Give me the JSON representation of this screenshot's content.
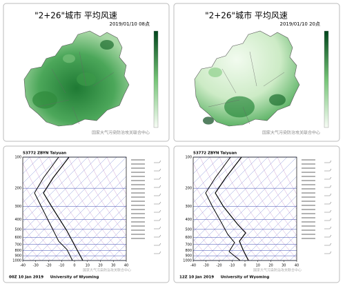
{
  "panels": [
    {
      "title": "\"2+26\"城市 平均风速",
      "time": "2019/01/10 08点",
      "credit": "国家大气污染防治攻关联合中心"
    },
    {
      "title": "\"2+26\"城市 平均风速",
      "time": "2019/01/10 20点",
      "credit": "国家大气污染防治攻关联合中心"
    }
  ],
  "soundings": [
    {
      "station": "53772 ZBYN Taiyuan",
      "time": "00Z 10 Jan 2019",
      "source": "University of Wyoming"
    },
    {
      "station": "53772 ZBYN Taiyuan",
      "time": "12Z 10 Jan 2019",
      "source": "University of Wyoming"
    }
  ],
  "pressure_ticks": [
    100,
    200,
    300,
    400,
    500,
    600,
    700,
    800,
    900,
    1000
  ],
  "temperature_ticks": [
    -40,
    -30,
    -20,
    -10,
    0,
    10,
    20,
    30,
    40
  ]
}
